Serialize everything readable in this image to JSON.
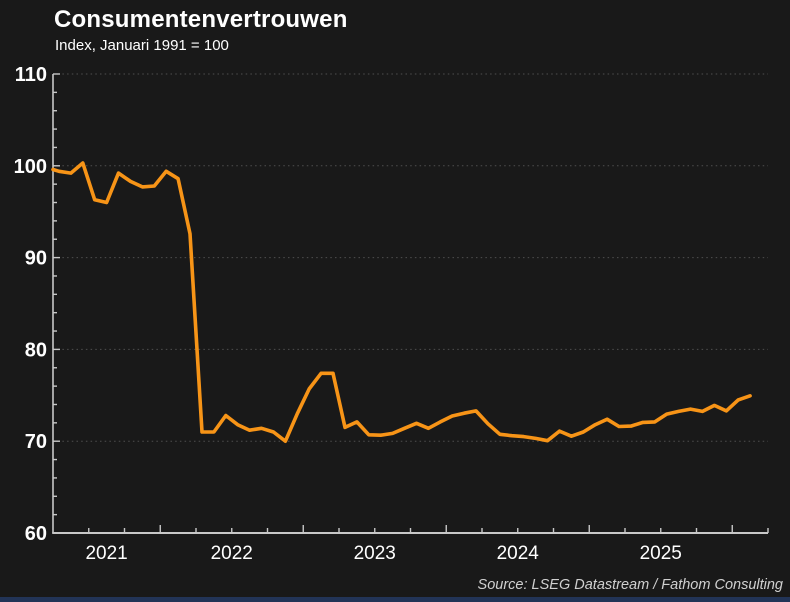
{
  "header": {
    "title": "Consumentenvertrouwen",
    "subtitle": "Index, Januari 1991 = 100"
  },
  "footer": {
    "source": "Source: LSEG Datastream / Fathom Consulting"
  },
  "colors": {
    "background": "#191919",
    "line": "#f79417",
    "axis": "#c8c8c8",
    "grid": "#4f4f4f",
    "text": "#ffffff",
    "source_text": "#d0d0d0",
    "bottom_bar": "#223457"
  },
  "chart_data": {
    "type": "line",
    "title": "Consumentenvertrouwen",
    "subtitle": "Index, Januari 1991 = 100",
    "source": "Source: LSEG Datastream / Fathom Consulting",
    "legend": "none",
    "grid": "horizontal dotted gridlines at major y ticks",
    "ylim": [
      60,
      110
    ],
    "yticks": [
      60,
      70,
      80,
      90,
      100,
      110
    ],
    "ytick_minor_step": 2,
    "xtick_interval": "quarterly, inward ticks, longer tick at each January",
    "x_year_labels": [
      "2021",
      "2022",
      "2023",
      "2024",
      "2025"
    ],
    "frequency": "monthly",
    "x_start": "2021-03",
    "x_end": "2026-02",
    "note": "first value is clipped at the left plot edge; remaining 59 values are monthly points",
    "values": [
      99.6,
      99.4,
      99.2,
      100.3,
      96.3,
      96.0,
      99.2,
      98.3,
      97.7,
      97.8,
      99.4,
      98.6,
      92.6,
      71.0,
      71.0,
      72.8,
      71.8,
      71.2,
      71.4,
      71.0,
      70.0,
      73.0,
      75.7,
      77.4,
      77.4,
      71.5,
      72.1,
      70.7,
      70.65,
      70.85,
      71.4,
      71.95,
      71.4,
      72.1,
      72.75,
      73.05,
      73.3,
      71.9,
      70.75,
      70.6,
      70.5,
      70.3,
      70.05,
      71.1,
      70.55,
      71.0,
      71.8,
      72.4,
      71.6,
      71.65,
      72.05,
      72.1,
      72.95,
      73.25,
      73.5,
      73.25,
      73.9,
      73.3,
      74.5,
      74.95
    ]
  }
}
